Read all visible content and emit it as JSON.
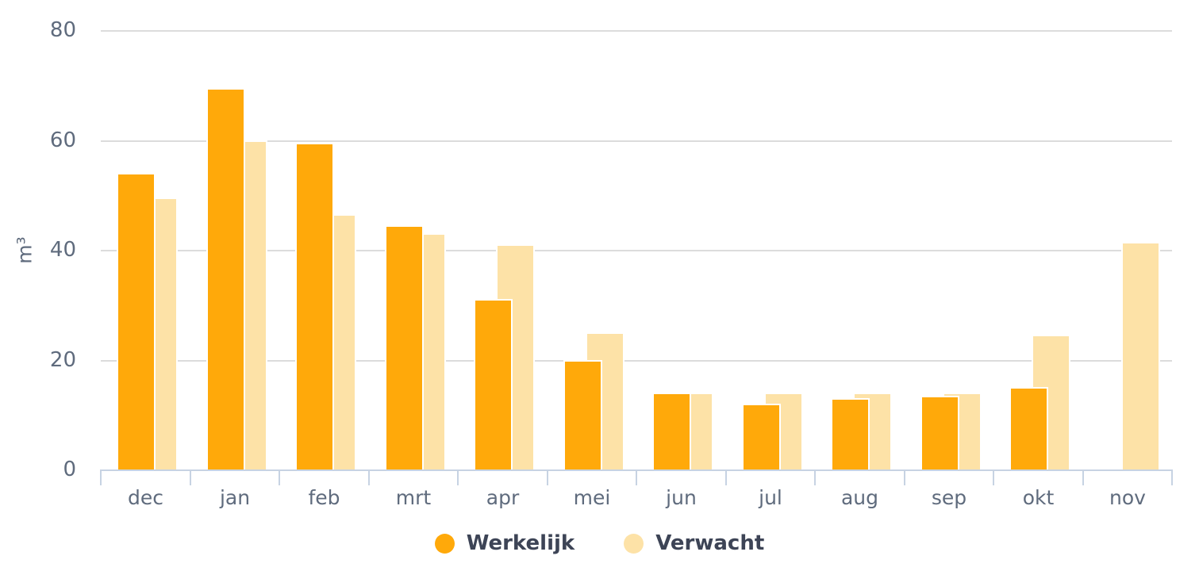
{
  "chart_data": {
    "type": "bar",
    "title": "",
    "xlabel": "",
    "ylabel": "m³",
    "categories": [
      "dec",
      "jan",
      "feb",
      "mrt",
      "apr",
      "mei",
      "jun",
      "jul",
      "aug",
      "sep",
      "okt",
      "nov"
    ],
    "series": [
      {
        "name": "Werkelijk",
        "color": "#ffa90a",
        "values": [
          54,
          69.5,
          59.5,
          44.5,
          31,
          20,
          14,
          12,
          13,
          13.5,
          15,
          null
        ]
      },
      {
        "name": "Verwacht",
        "color": "#fde2a7",
        "values": [
          49.5,
          60,
          46.5,
          43,
          41,
          25,
          14,
          14,
          14,
          14,
          24.5,
          41.5
        ]
      }
    ],
    "yticks": [
      0,
      20,
      40,
      60,
      80
    ],
    "ylim": [
      0,
      80
    ],
    "grid": true,
    "legend_position": "bottom",
    "colors": {
      "grid": "#dcdcdc",
      "axis": "#c7d3e3",
      "axis_labels": "#5f6b7d",
      "legend_text": "#3d4456"
    }
  }
}
